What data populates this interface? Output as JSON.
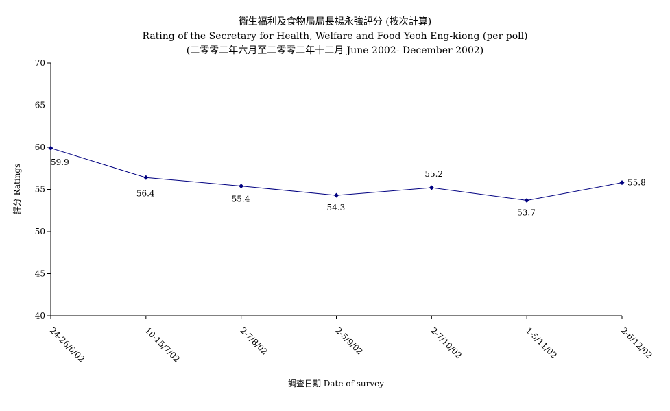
{
  "chart_data": {
    "type": "line",
    "title": "衞生福利及食物局局長楊永強評分 (按次計算)",
    "subtitle": "Rating of the Secretary for Health, Welfare and Food Yeoh Eng-kiong (per poll)",
    "subtitle2": "(二零零二年六月至二零零二年十二月 June 2002- December 2002)",
    "xlabel": "調查日期 Date of survey",
    "ylabel": "評分 Ratings",
    "categories": [
      "24-26/6/02",
      "10-15/7/02",
      "2-7/8/02",
      "2-5/9/02",
      "2-7/10/02",
      "1-5/11/02",
      "2-6/12/02"
    ],
    "series": [
      {
        "values": [
          59.9,
          56.4,
          55.4,
          54.3,
          55.2,
          53.7,
          55.8
        ]
      }
    ],
    "value_labels": [
      "59.9",
      "56.4",
      "55.4",
      "54.3",
      "55.2",
      "53.7",
      "55.8"
    ],
    "ylim": [
      40,
      70
    ],
    "yticks": [
      "40",
      "45",
      "50",
      "55",
      "60",
      "65",
      "70"
    ],
    "grid": false,
    "legend": "none",
    "line_color": "#000080",
    "marker_color": "#000080"
  }
}
